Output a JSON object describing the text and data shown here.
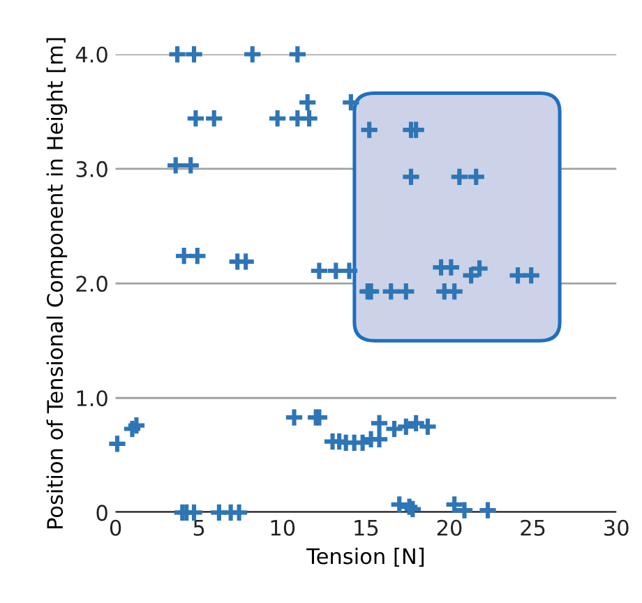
{
  "chart_data": {
    "type": "scatter",
    "xlabel": "Tension [N]",
    "ylabel": "Position of Tensional Component in Height [m]",
    "xlim": [
      0,
      30
    ],
    "xticks": [
      0,
      5,
      10,
      15,
      20,
      25,
      30
    ],
    "ylim": [
      0,
      4.0
    ],
    "yticks": [
      {
        "value": 0,
        "label": "0"
      },
      {
        "value": 1,
        "label": "1.0"
      },
      {
        "value": 2,
        "label": "2.0"
      },
      {
        "value": 3,
        "label": "3.0"
      },
      {
        "value": 4,
        "label": "4.0"
      }
    ],
    "grid": "y",
    "marker": "cross",
    "series": [
      {
        "color": "#2e75b6",
        "x": [
          3.7,
          4.7,
          8.2,
          10.9,
          11.5,
          14.1,
          4.8,
          5.9,
          9.7,
          10.9,
          11.6,
          3.6,
          4.5,
          4.1,
          4.9,
          7.3,
          7.8,
          12.2,
          13.2,
          14.0,
          15.2,
          17.7,
          18.0,
          17.7,
          20.6,
          21.6,
          19.5,
          20.1,
          21.3,
          21.8,
          24.1,
          24.9,
          15.1,
          15.3,
          16.5,
          17.4,
          19.7,
          20.3,
          0.1,
          1.0,
          1.25,
          10.7,
          12.0,
          12.2,
          13.0,
          13.4,
          13.8,
          14.3,
          14.8,
          15.3,
          15.8,
          15.8,
          16.7,
          17.4,
          18.0,
          18.7,
          4.0,
          4.25,
          4.7,
          6.2,
          6.9,
          7.4,
          17.0,
          17.6,
          17.8,
          20.3,
          20.9,
          22.3
        ],
        "values": [
          4.0,
          4.0,
          4.0,
          4.0,
          3.58,
          3.58,
          3.44,
          3.44,
          3.44,
          3.44,
          3.44,
          3.03,
          3.03,
          2.24,
          2.24,
          2.19,
          2.19,
          2.11,
          2.11,
          2.11,
          3.34,
          3.34,
          3.34,
          2.93,
          2.93,
          2.93,
          2.14,
          2.14,
          2.07,
          2.13,
          2.07,
          2.07,
          1.93,
          1.93,
          1.93,
          1.93,
          1.93,
          1.93,
          0.6,
          0.73,
          0.76,
          0.83,
          0.83,
          0.83,
          0.62,
          0.62,
          0.61,
          0.61,
          0.61,
          0.64,
          0.64,
          0.78,
          0.73,
          0.75,
          0.78,
          0.75,
          0.0,
          0.0,
          0.0,
          0.0,
          0.0,
          0.0,
          0.07,
          0.05,
          0.03,
          0.07,
          0.02,
          0.02
        ]
      }
    ]
  }
}
